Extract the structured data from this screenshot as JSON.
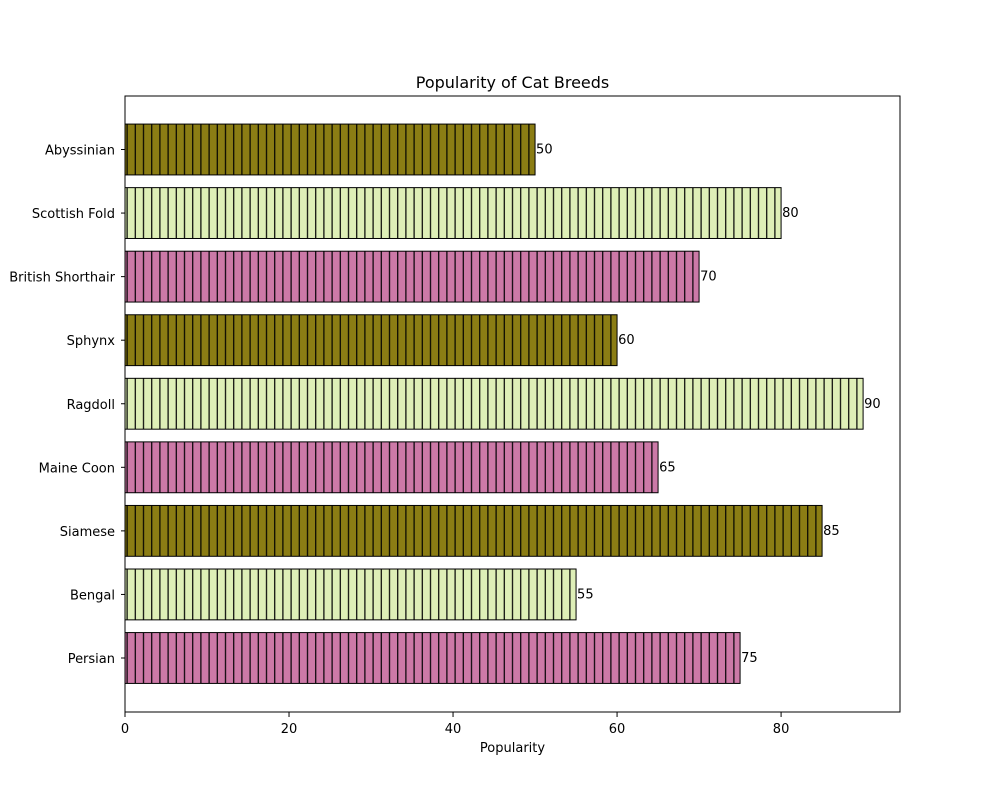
{
  "chart_data": {
    "type": "bar",
    "orientation": "horizontal",
    "title": "Popularity of Cat Breeds",
    "xlabel": "Popularity",
    "ylabel": "",
    "xlim": [
      0,
      94.5
    ],
    "x_ticks": [
      0,
      20,
      40,
      60,
      80
    ],
    "categories": [
      "Persian",
      "Bengal",
      "Siamese",
      "Maine Coon",
      "Ragdoll",
      "Sphynx",
      "British Shorthair",
      "Scottish Fold",
      "Abyssinian"
    ],
    "values": [
      75,
      55,
      85,
      65,
      90,
      60,
      70,
      80,
      50
    ],
    "colors": [
      "#cc79a7",
      "#deefb7",
      "#8b7d14",
      "#cc79a7",
      "#deefb7",
      "#8b7d14",
      "#cc79a7",
      "#deefb7",
      "#8b7d14"
    ],
    "hatch": "vertical-lines",
    "grid": false,
    "legend": "none"
  }
}
